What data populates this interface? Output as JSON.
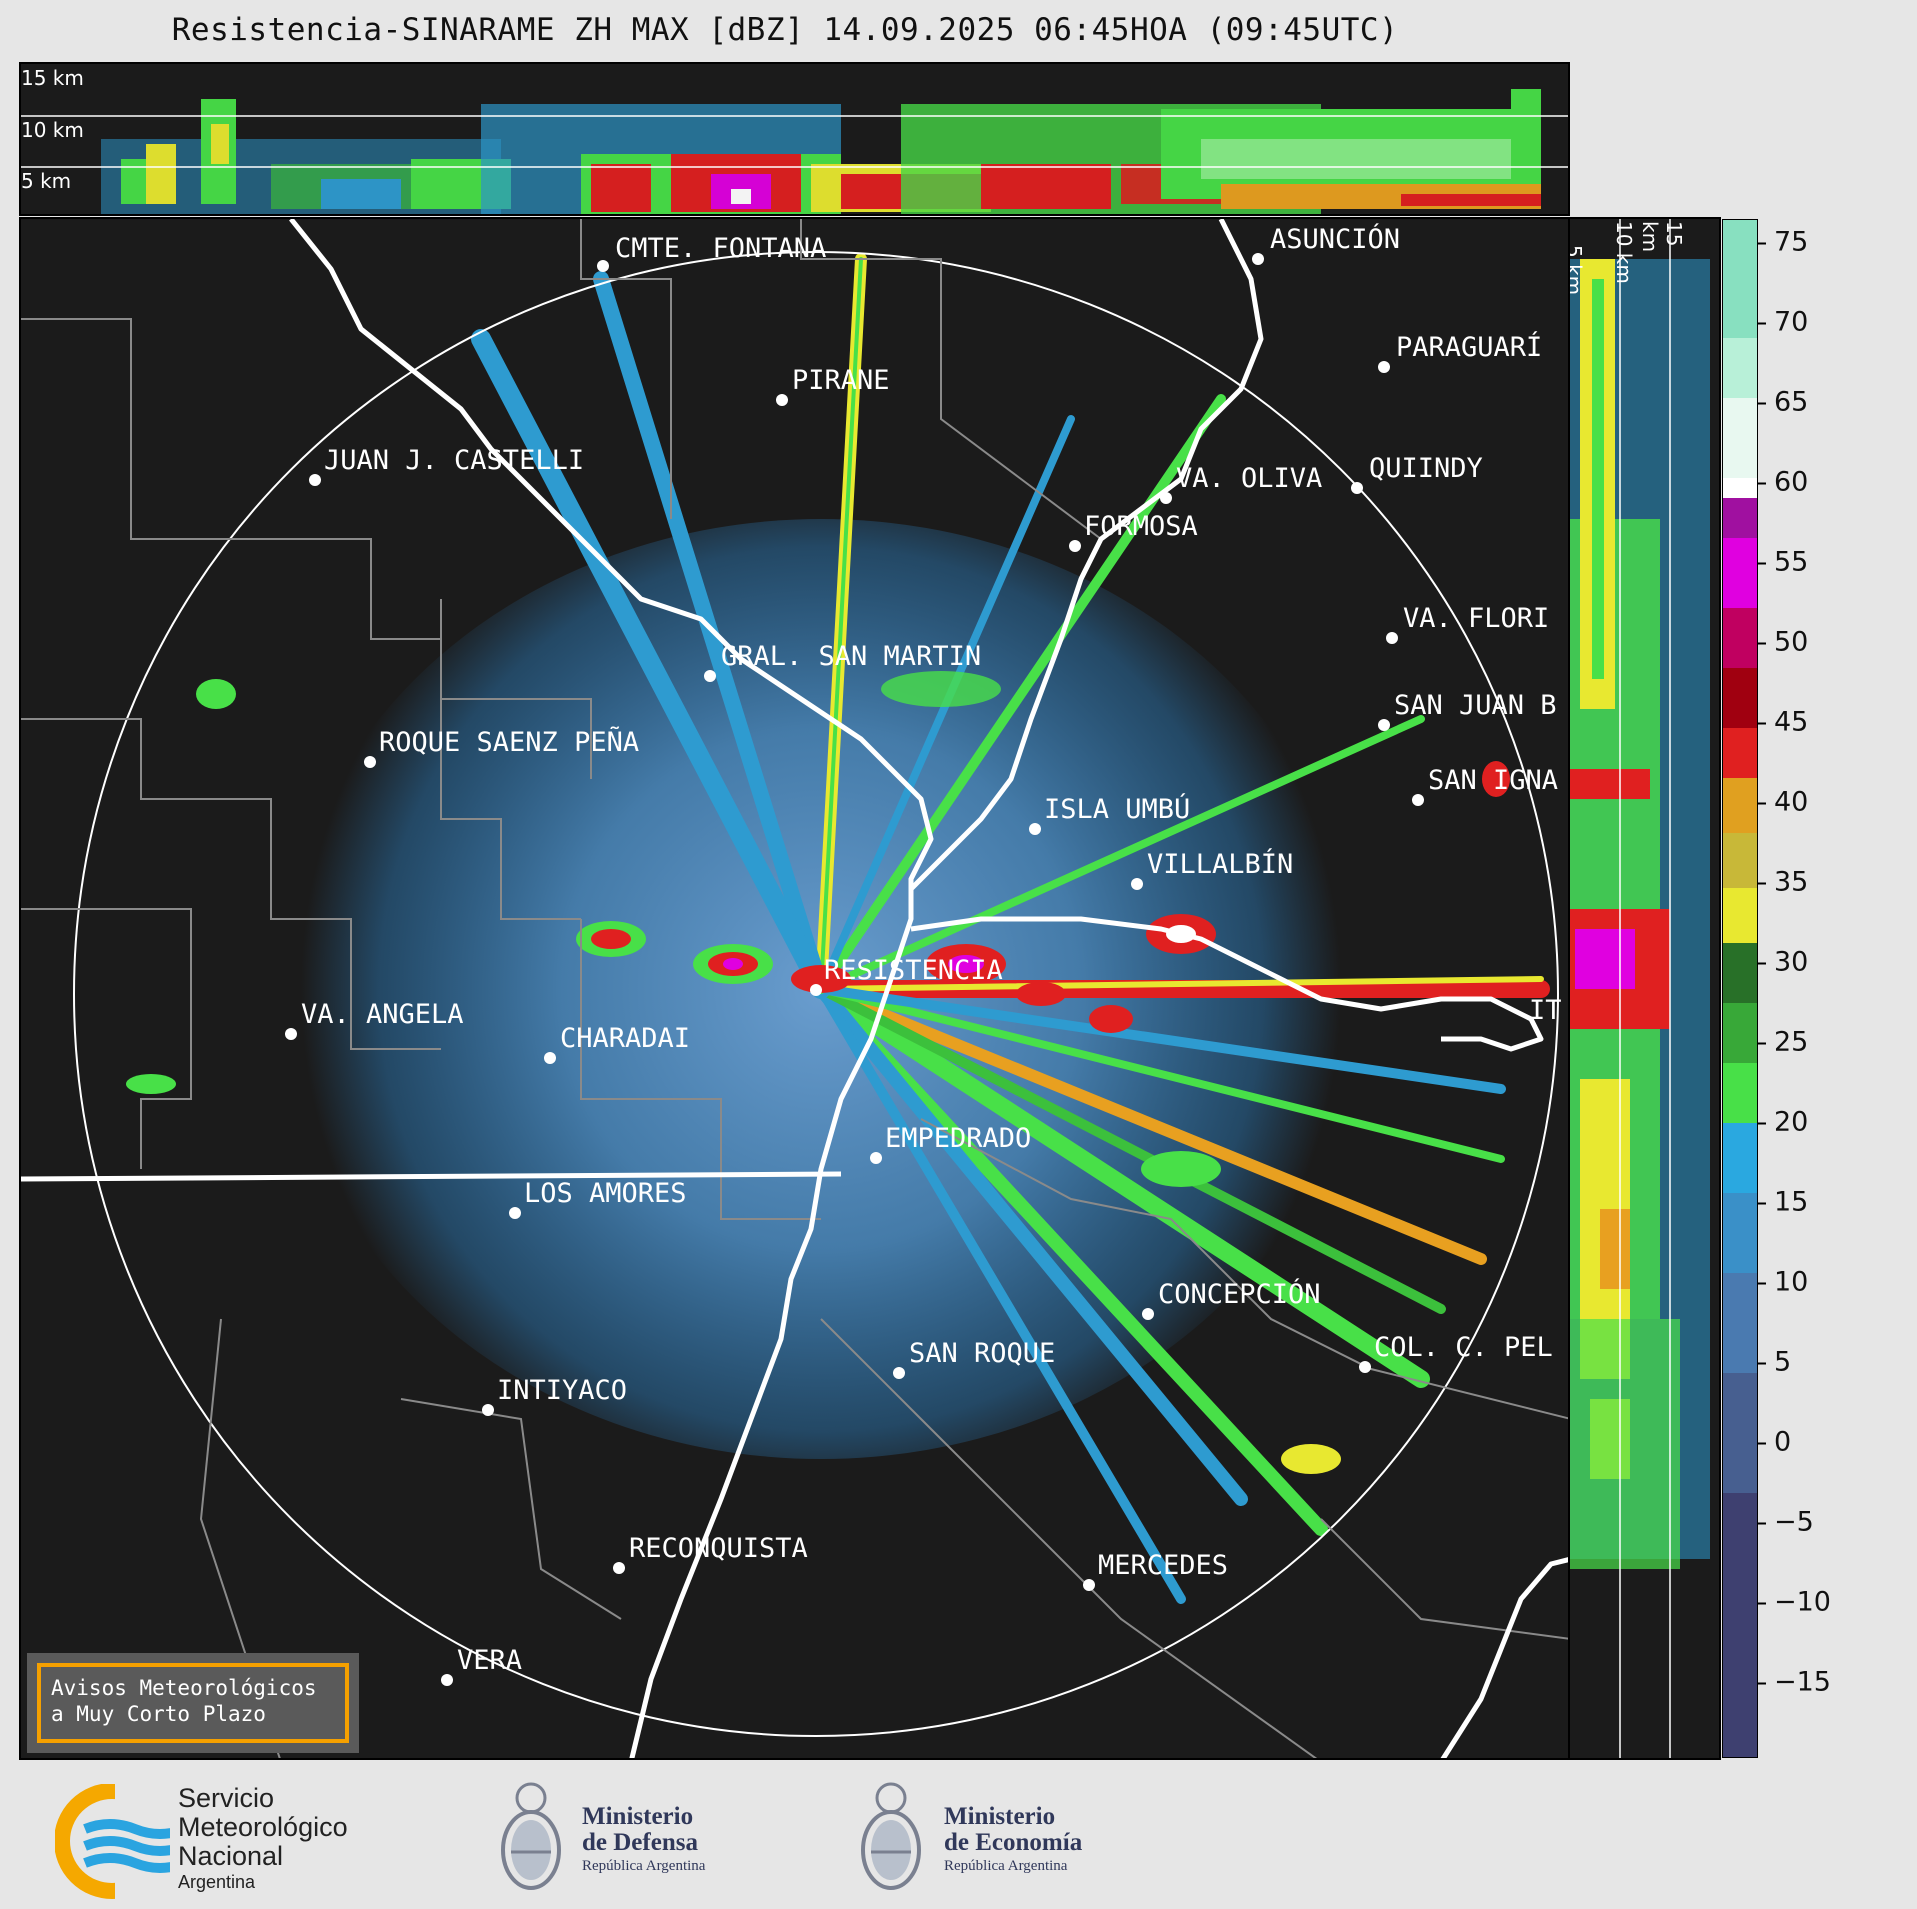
{
  "title": "Resistencia-SINARAME ZH MAX [dBZ] 14.09.2025 06:45HOA (09:45UTC)",
  "top_cross_section": {
    "altitude_labels": [
      "15 km",
      "10 km",
      "5 km"
    ]
  },
  "side_cross_section": {
    "altitude_labels": [
      "5 km",
      "10 km",
      "15 km"
    ]
  },
  "colorbar": {
    "unit": "dBZ",
    "ticks": [
      "75",
      "70",
      "65",
      "60",
      "55",
      "50",
      "45",
      "40",
      "35",
      "30",
      "25",
      "20",
      "15",
      "10",
      "5",
      "0",
      "−5",
      "−10",
      "−15"
    ]
  },
  "cities": [
    {
      "name": "CMTE. FONTANA"
    },
    {
      "name": "ASUNCIÓN"
    },
    {
      "name": "PARAGUARÍ"
    },
    {
      "name": "PIRANE"
    },
    {
      "name": "JUAN J. CASTELLI"
    },
    {
      "name": "VA. OLIVA"
    },
    {
      "name": "QUIINDY"
    },
    {
      "name": "FORMOSA"
    },
    {
      "name": "VA. FLORI"
    },
    {
      "name": "GRAL. SAN MARTIN"
    },
    {
      "name": "SAN JUAN B"
    },
    {
      "name": "ROQUE SAENZ PEÑA"
    },
    {
      "name": "SAN IGNA"
    },
    {
      "name": "ISLA UMBÚ"
    },
    {
      "name": "VILLALBÍN"
    },
    {
      "name": "RESISTENCIA"
    },
    {
      "name": "VA. ANGELA"
    },
    {
      "name": "CHARADAI"
    },
    {
      "name": "IT"
    },
    {
      "name": "EMPEDRADO"
    },
    {
      "name": "LOS AMORES"
    },
    {
      "name": "CONCEPCIÓN"
    },
    {
      "name": "SAN ROQUE"
    },
    {
      "name": "COL. C. PEL"
    },
    {
      "name": "INTIYACO"
    },
    {
      "name": "RECONQUISTA"
    },
    {
      "name": "MERCEDES"
    },
    {
      "name": "VERA"
    }
  ],
  "aviso": {
    "line1": "Avisos Meteorológicos",
    "line2": "a Muy Corto Plazo"
  },
  "logos": {
    "smn": {
      "line1": "Servicio",
      "line2": "Meteorológico",
      "line3": "Nacional",
      "line4": "Argentina"
    },
    "defensa": {
      "line1": "Ministerio",
      "line2": "de Defensa",
      "line3": "República Argentina"
    },
    "economia": {
      "line1": "Ministerio",
      "line2": "de Economía",
      "line3": "República Argentina"
    }
  },
  "colors": {
    "background": "#1b1b1b",
    "page": "#e6e6e6",
    "aviso_border": "#f5a000",
    "smn_yellow": "#f5a800",
    "smn_blue": "#2aa4e0"
  }
}
